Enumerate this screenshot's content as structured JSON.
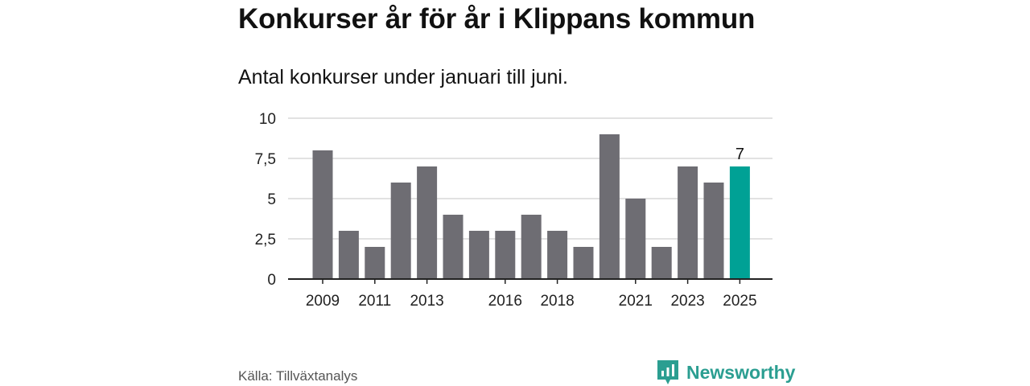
{
  "header": {
    "title": "Konkurser år för år i Klippans kommun",
    "subtitle": "Antal konkurser under januari till juni."
  },
  "footer": {
    "source": "Källa: Tillväxtanalys",
    "brand": "Newsworthy"
  },
  "colors": {
    "bar": "#6e6d73",
    "highlight": "#00a195",
    "grid": "#d9d9d9",
    "axis": "#222222",
    "brand": "#2b9e91"
  },
  "chart_data": {
    "type": "bar",
    "categories": [
      "2009",
      "2010",
      "2011",
      "2012",
      "2013",
      "2014",
      "2015",
      "2016",
      "2017",
      "2018",
      "2019",
      "2020",
      "2021",
      "2022",
      "2023",
      "2024",
      "2025"
    ],
    "values": [
      8,
      3,
      2,
      6,
      7,
      4,
      3,
      3,
      4,
      3,
      2,
      9,
      5,
      2,
      7,
      6,
      7
    ],
    "highlight_index": 16,
    "highlight_label": "7",
    "x_tick_labels": [
      "2009",
      "2011",
      "2013",
      "2016",
      "2018",
      "2021",
      "2023",
      "2025"
    ],
    "y_ticks": [
      "0",
      "2,5",
      "5",
      "7,5",
      "10"
    ],
    "y_tick_values": [
      0,
      2.5,
      5,
      7.5,
      10
    ],
    "ylim": [
      0,
      10
    ],
    "grid": true
  }
}
